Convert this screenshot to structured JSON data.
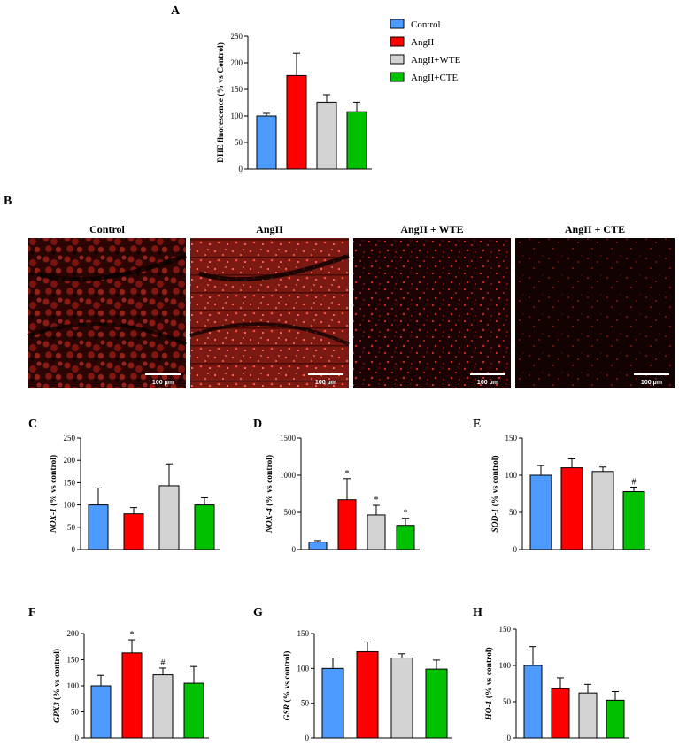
{
  "colors": {
    "Control": "#4d9bff",
    "AngII": "#ff0000",
    "AngII+WTE": "#d3d3d3",
    "AngII+CTE": "#00c000"
  },
  "legend": [
    "Control",
    "AngII",
    "AngII+WTE",
    "AngII+CTE"
  ],
  "micrographs": {
    "letter": "B",
    "titles": [
      "Control",
      "AngII",
      "AngII + WTE",
      "AngII + CTE"
    ],
    "scale_label": "100 μm"
  },
  "chart_data": [
    {
      "letter": "A",
      "type": "bar",
      "categories": [
        "Control",
        "AngII",
        "AngII+WTE",
        "AngII+CTE"
      ],
      "values": [
        100,
        176,
        126,
        108
      ],
      "errors": [
        5,
        42,
        14,
        18
      ],
      "ylim": [
        0,
        250
      ],
      "yticks": [
        "0",
        "50",
        "100",
        "150",
        "200",
        "250"
      ],
      "ylabel": "DHE fluorescence (% vs Control)",
      "marks": [
        "",
        "",
        "",
        ""
      ]
    },
    {
      "letter": "C",
      "type": "bar",
      "categories": [
        "Control",
        "AngII",
        "AngII+WTE",
        "AngII+CTE"
      ],
      "values": [
        100,
        80,
        143,
        100
      ],
      "errors": [
        38,
        14,
        49,
        16
      ],
      "ylim": [
        0,
        250
      ],
      "yticks": [
        "0",
        "50",
        "100",
        "150",
        "200",
        "250"
      ],
      "ylabel_italic": "NOX-1",
      "ylabel_rest": " (% vs control)",
      "marks": [
        "",
        "",
        "",
        ""
      ]
    },
    {
      "letter": "D",
      "type": "bar",
      "categories": [
        "Control",
        "AngII",
        "AngII+WTE",
        "AngII+CTE"
      ],
      "values": [
        100,
        670,
        465,
        325
      ],
      "errors": [
        20,
        285,
        130,
        95
      ],
      "ylim": [
        0,
        1500
      ],
      "yticks": [
        "0",
        "500",
        "1000",
        "1500"
      ],
      "ylabel_italic": "NOX-4",
      "ylabel_rest": " (% vs control)",
      "marks": [
        "",
        "*",
        "*",
        "*"
      ]
    },
    {
      "letter": "E",
      "type": "bar",
      "categories": [
        "Control",
        "AngII",
        "AngII+WTE",
        "AngII+CTE"
      ],
      "values": [
        100,
        110,
        105,
        78
      ],
      "errors": [
        13,
        12,
        6,
        6
      ],
      "ylim": [
        0,
        150
      ],
      "yticks": [
        "0",
        "50",
        "100",
        "150"
      ],
      "ylabel_italic": "SOD-1",
      "ylabel_rest": " (% vs control)",
      "marks": [
        "",
        "",
        "",
        "#"
      ]
    },
    {
      "letter": "F",
      "type": "bar",
      "categories": [
        "Control",
        "AngII",
        "AngII+WTE",
        "AngII+CTE"
      ],
      "values": [
        100,
        163,
        121,
        105
      ],
      "errors": [
        20,
        25,
        13,
        32
      ],
      "ylim": [
        0,
        200
      ],
      "yticks": [
        "0",
        "50",
        "100",
        "150",
        "200"
      ],
      "ylabel_italic": "GPX3",
      "ylabel_rest": " (% vs control)",
      "marks": [
        "",
        "*",
        "#",
        ""
      ]
    },
    {
      "letter": "G",
      "type": "bar",
      "categories": [
        "Control",
        "AngII",
        "AngII+WTE",
        "AngII+CTE"
      ],
      "values": [
        100,
        124,
        115,
        99
      ],
      "errors": [
        15,
        14,
        6,
        13
      ],
      "ylim": [
        0,
        150
      ],
      "yticks": [
        "0",
        "50",
        "100",
        "150"
      ],
      "ylabel_italic": "GSR",
      "ylabel_rest": " (% vs control)",
      "marks": [
        "",
        "",
        "",
        ""
      ]
    },
    {
      "letter": "H",
      "type": "bar",
      "categories": [
        "Control",
        "AngII",
        "AngII+WTE",
        "AngII+CTE"
      ],
      "values": [
        100,
        68,
        62,
        52
      ],
      "errors": [
        26,
        15,
        12,
        12
      ],
      "ylim": [
        0,
        150
      ],
      "yticks": [
        "0",
        "50",
        "100",
        "150"
      ],
      "ylabel_italic": "HO-1",
      "ylabel_rest": " (% vs control)",
      "marks": [
        "",
        "",
        "",
        ""
      ]
    }
  ]
}
